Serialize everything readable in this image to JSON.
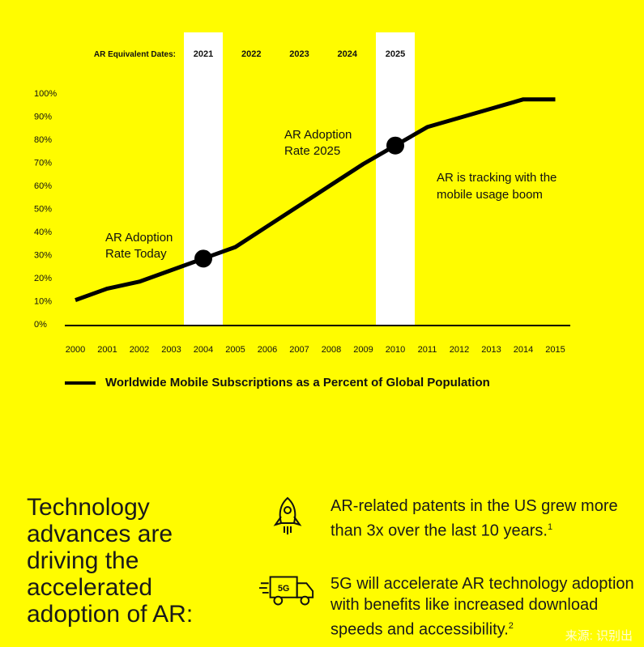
{
  "chart_data": {
    "type": "line",
    "equivalent_label": "AR Equivalent Dates:",
    "equivalent_dates": [
      {
        "x": "2004",
        "label": "2021",
        "highlight": true
      },
      {
        "x": "2005.5",
        "label": "2022",
        "highlight": false
      },
      {
        "x": "2007",
        "label": "2023",
        "highlight": false
      },
      {
        "x": "2008.5",
        "label": "2024",
        "highlight": false
      },
      {
        "x": "2010",
        "label": "2025",
        "highlight": true
      }
    ],
    "x": [
      "2000",
      "2001",
      "2002",
      "2003",
      "2004",
      "2005",
      "2006",
      "2007",
      "2008",
      "2009",
      "2010",
      "2011",
      "2012",
      "2013",
      "2014",
      "2015"
    ],
    "y_ticks": [
      "0%",
      "10%",
      "20%",
      "30%",
      "40%",
      "50%",
      "60%",
      "70%",
      "80%",
      "90%",
      "100%"
    ],
    "ylim": [
      0,
      100
    ],
    "series": [
      {
        "name": "Worldwide Mobile Subscriptions as a Percent of Global Population",
        "values": [
          11,
          16,
          19,
          24,
          29,
          34,
          43,
          52,
          61,
          70,
          78,
          86,
          90,
          94,
          98,
          98
        ]
      }
    ],
    "highlight_points": [
      {
        "x": 2004,
        "y": 29,
        "label_line1": "AR Adoption",
        "label_line2": "Rate Today"
      },
      {
        "x": 2010,
        "y": 78,
        "label_line1": "AR Adoption",
        "label_line2": "Rate 2025"
      }
    ],
    "annotation": {
      "line1": "AR is tracking with the",
      "line2": "mobile usage boom"
    },
    "color": "#000000",
    "background": "#FFFC00",
    "band_color": "#FFFFFF"
  },
  "legend": {
    "label": "Worldwide Mobile Subscriptions as a Percent of Global Population"
  },
  "headline": "Technology advances are driving the accelerated adoption of AR:",
  "features": [
    {
      "icon": "rocket-icon",
      "text": "AR-related patents in the US grew more than 3x over the last 10 years.",
      "sup": "1"
    },
    {
      "icon": "5g-truck-icon",
      "truck_label": "5G",
      "text": "5G will accelerate AR technology adoption with benefits like increased download speeds and accessibility.",
      "sup": "2"
    }
  ],
  "watermark": "来源: 识别出"
}
